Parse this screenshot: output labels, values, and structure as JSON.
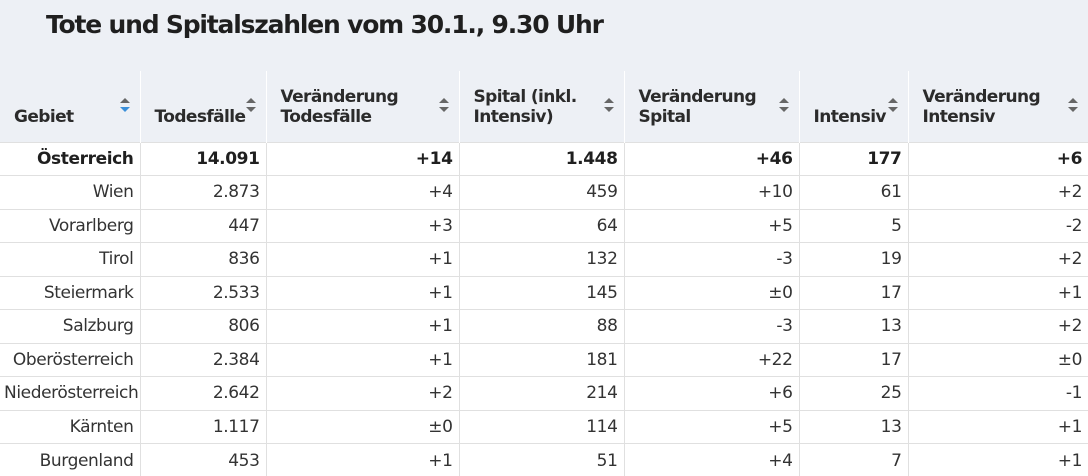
{
  "title": "Tote und Spitalszahlen vom 30.1., 9.30 Uhr",
  "columns": [
    "Gebiet",
    "Todesfälle",
    "Veränderung Todesfälle",
    "Spital (inkl. Intensiv)",
    "Veränderung Spital",
    "Intensiv",
    "Veränderung Intensiv"
  ],
  "sort": {
    "column": "Gebiet",
    "direction": "descending",
    "active_color": "#3b8fd9"
  },
  "rows": [
    [
      "Österreich",
      "14.091",
      "+14",
      "1.448",
      "+46",
      "177",
      "+6"
    ],
    [
      "Wien",
      "2.873",
      "+4",
      "459",
      "+10",
      "61",
      "+2"
    ],
    [
      "Vorarlberg",
      "447",
      "+3",
      "64",
      "+5",
      "5",
      "-2"
    ],
    [
      "Tirol",
      "836",
      "+1",
      "132",
      "-3",
      "19",
      "+2"
    ],
    [
      "Steiermark",
      "2.533",
      "+1",
      "145",
      "±0",
      "17",
      "+1"
    ],
    [
      "Salzburg",
      "806",
      "+1",
      "88",
      "-3",
      "13",
      "+2"
    ],
    [
      "Oberösterreich",
      "2.384",
      "+1",
      "181",
      "+22",
      "17",
      "±0"
    ],
    [
      "Niederösterreich",
      "2.642",
      "+2",
      "214",
      "+6",
      "25",
      "-1"
    ],
    [
      "Kärnten",
      "1.117",
      "±0",
      "114",
      "+5",
      "13",
      "+1"
    ],
    [
      "Burgenland",
      "453",
      "+1",
      "51",
      "+4",
      "7",
      "+1"
    ]
  ]
}
